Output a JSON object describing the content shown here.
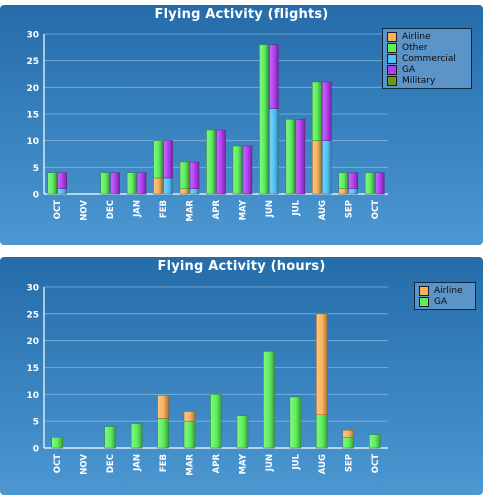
{
  "chart_data": [
    {
      "type": "bar",
      "title": "Flying Activity (flights)",
      "categories": [
        "OCT",
        "NOV",
        "DEC",
        "JAN",
        "FEB",
        "MAR",
        "APR",
        "MAY",
        "JUN",
        "JUL",
        "AUG",
        "SEP",
        "OCT"
      ],
      "ylim": [
        0,
        30
      ],
      "yticks": [
        0,
        5,
        10,
        15,
        20,
        25,
        30
      ],
      "grid": true,
      "legend_position": "top-right",
      "layout": "grouped-stacked",
      "series": [
        {
          "name": "Airline",
          "group": 0,
          "color": "#f8b35c",
          "values": [
            0,
            0,
            0,
            0,
            3,
            1,
            0,
            0,
            0,
            0,
            10,
            1,
            0
          ]
        },
        {
          "name": "Other",
          "group": 0,
          "color": "#5cf05c",
          "values": [
            4,
            0,
            4,
            4,
            7,
            5,
            12,
            9,
            28,
            14,
            11,
            3,
            4
          ]
        },
        {
          "name": "Commercial",
          "group": 1,
          "color": "#4fc3f7",
          "values": [
            1,
            0,
            0,
            0,
            3,
            1,
            0,
            0,
            16,
            0,
            10,
            1,
            0
          ]
        },
        {
          "name": "GA",
          "group": 1,
          "color": "#b23cf0",
          "values": [
            3,
            0,
            4,
            4,
            7,
            5,
            12,
            9,
            12,
            14,
            11,
            3,
            4
          ]
        },
        {
          "name": "Military",
          "group": 1,
          "color": "#6c9a1e",
          "values": [
            0,
            0,
            0,
            0,
            0,
            0,
            0,
            0,
            0,
            0,
            0,
            0,
            0
          ]
        }
      ]
    },
    {
      "type": "bar",
      "title": "Flying Activity (hours)",
      "categories": [
        "OCT",
        "NOV",
        "DEC",
        "JAN",
        "FEB",
        "MAR",
        "APR",
        "MAY",
        "JUN",
        "JUL",
        "AUG",
        "SEP",
        "OCT"
      ],
      "ylim": [
        0,
        30
      ],
      "yticks": [
        0,
        5,
        10,
        15,
        20,
        25,
        30
      ],
      "grid": true,
      "legend_position": "top-right",
      "layout": "stacked",
      "series": [
        {
          "name": "GA",
          "group": 0,
          "color": "#5cf05c",
          "values": [
            2,
            0,
            4,
            4.5,
            5.5,
            5,
            10,
            6,
            18,
            9.5,
            6.2,
            2,
            2.5
          ]
        },
        {
          "name": "Airline",
          "group": 0,
          "color": "#f8b35c",
          "values": [
            0,
            0,
            0,
            0,
            4.3,
            1.8,
            0,
            0,
            0,
            0,
            18.8,
            1.3,
            0
          ]
        }
      ]
    }
  ]
}
